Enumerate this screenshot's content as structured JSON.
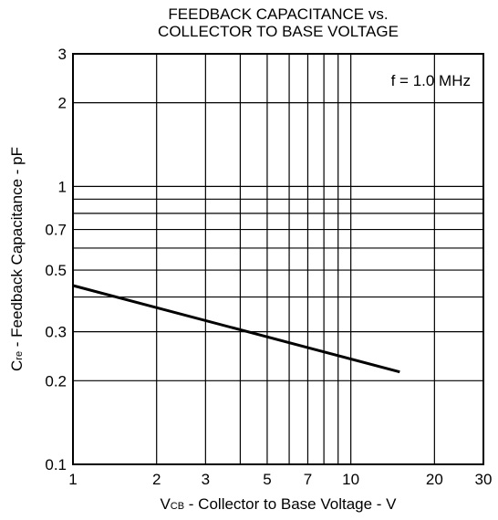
{
  "chart_data": {
    "type": "line",
    "title_line1": "FEEDBACK CAPACITANCE vs.",
    "title_line2": "COLLECTOR TO BASE VOLTAGE",
    "annotation": "f = 1.0 MHz",
    "xlabel": {
      "sym": "V",
      "sub": "CB",
      "rest": " - Collector to Base Voltage - V"
    },
    "ylabel": {
      "sym": "C",
      "sub": "re",
      "rest": " - Feedback Capacitance - pF"
    },
    "x_scale": "log",
    "y_scale": "log",
    "xlim": [
      1,
      30
    ],
    "ylim": [
      0.1,
      3
    ],
    "x_ticks": [
      {
        "value": 1,
        "label": "1"
      },
      {
        "value": 2,
        "label": "2"
      },
      {
        "value": 3,
        "label": "3"
      },
      {
        "value": 5,
        "label": "5"
      },
      {
        "value": 7,
        "label": "7"
      },
      {
        "value": 10,
        "label": "10"
      },
      {
        "value": 20,
        "label": "20"
      },
      {
        "value": 30,
        "label": "30"
      }
    ],
    "y_ticks": [
      {
        "value": 0.1,
        "label": "0.1"
      },
      {
        "value": 0.2,
        "label": "0.2"
      },
      {
        "value": 0.3,
        "label": "0.3"
      },
      {
        "value": 0.5,
        "label": "0.5"
      },
      {
        "value": 0.7,
        "label": "0.7"
      },
      {
        "value": 1,
        "label": "1"
      },
      {
        "value": 2,
        "label": "2"
      },
      {
        "value": 3,
        "label": "3"
      }
    ],
    "x_grid": [
      1,
      2,
      3,
      4,
      5,
      6,
      7,
      8,
      9,
      10,
      20,
      30
    ],
    "y_grid": [
      0.1,
      0.2,
      0.3,
      0.4,
      0.5,
      0.6,
      0.7,
      0.8,
      0.9,
      1,
      2,
      3
    ],
    "grid": true,
    "series": [
      {
        "x": [
          1,
          15
        ],
        "y": [
          0.44,
          0.215
        ]
      }
    ]
  }
}
